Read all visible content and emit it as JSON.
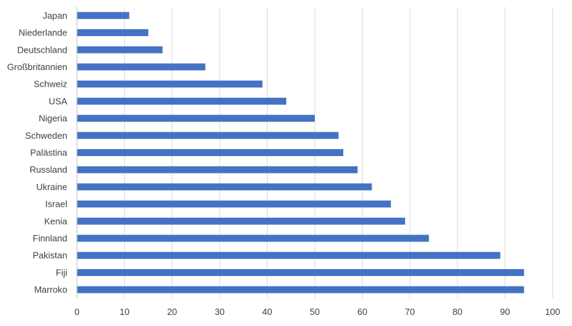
{
  "chart_data": {
    "type": "bar",
    "orientation": "horizontal",
    "categories": [
      "Japan",
      "Niederlande",
      "Deutschland",
      "Großbritannien",
      "Schweiz",
      "USA",
      "Nigeria",
      "Schweden",
      "Palästina",
      "Russland",
      "Ukraine",
      "Israel",
      "Kenia",
      "Finnland",
      "Pakistan",
      "Fiji",
      "Marroko"
    ],
    "values": [
      11,
      15,
      18,
      27,
      39,
      44,
      50,
      55,
      56,
      59,
      62,
      66,
      69,
      74,
      89,
      94,
      94
    ],
    "title": "",
    "xlabel": "",
    "ylabel": "",
    "xlim": [
      0,
      100
    ],
    "xticks": [
      "0",
      "10",
      "20",
      "30",
      "40",
      "50",
      "60",
      "70",
      "80",
      "90",
      "100"
    ],
    "grid": true,
    "legend": "none",
    "bar_color": "#4472C4"
  }
}
